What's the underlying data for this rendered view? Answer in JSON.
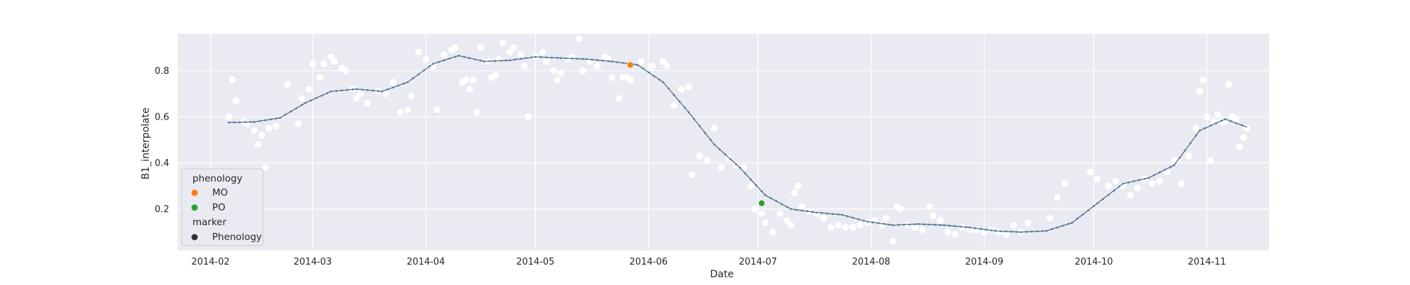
{
  "chart_data": {
    "type": "scatter",
    "style": "seaborn-darkgrid",
    "xlabel": "Date",
    "ylabel": "B1_interpolate",
    "x_ticks": [
      "2014-02",
      "2014-03",
      "2014-04",
      "2014-05",
      "2014-06",
      "2014-07",
      "2014-08",
      "2014-09",
      "2014-10",
      "2014-11"
    ],
    "y_ticks": [
      "0.2",
      "0.4",
      "0.6",
      "0.8"
    ],
    "xlim": [
      "2014-01-23",
      "2014-11-18"
    ],
    "ylim": [
      0.02,
      0.96
    ],
    "grid": true,
    "colors": {
      "background": "#eaeaf2",
      "grid": "#ffffff",
      "raw_points": "#ffffff",
      "curve": "#4c6e8c",
      "MO": "#ff7f0e",
      "PO": "#2ca02c",
      "marker_legend": "#333333"
    },
    "legend": {
      "placement": "lower-left",
      "hue_title": "phenology",
      "hue_entries": [
        "MO",
        "PO"
      ],
      "marker_title": "marker",
      "marker_entries": [
        "Phenology"
      ]
    },
    "raw_series": {
      "points": [
        [
          "2014-02-06",
          0.6
        ],
        [
          "2014-02-07",
          0.76
        ],
        [
          "2014-02-08",
          0.67
        ],
        [
          "2014-02-10",
          0.58
        ],
        [
          "2014-02-11",
          0.57
        ],
        [
          "2014-02-13",
          0.54
        ],
        [
          "2014-02-14",
          0.48
        ],
        [
          "2014-02-15",
          0.52
        ],
        [
          "2014-02-16",
          0.38
        ],
        [
          "2014-02-17",
          0.55
        ],
        [
          "2014-02-19",
          0.56
        ],
        [
          "2014-02-22",
          0.74
        ],
        [
          "2014-02-25",
          0.57
        ],
        [
          "2014-02-26",
          0.68
        ],
        [
          "2014-02-28",
          0.72
        ],
        [
          "2014-03-01",
          0.83
        ],
        [
          "2014-03-03",
          0.77
        ],
        [
          "2014-03-04",
          0.83
        ],
        [
          "2014-03-06",
          0.86
        ],
        [
          "2014-03-07",
          0.84
        ],
        [
          "2014-03-09",
          0.81
        ],
        [
          "2014-03-10",
          0.8
        ],
        [
          "2014-03-12",
          0.72
        ],
        [
          "2014-03-13",
          0.68
        ],
        [
          "2014-03-14",
          0.7
        ],
        [
          "2014-03-16",
          0.66
        ],
        [
          "2014-03-19",
          0.71
        ],
        [
          "2014-03-21",
          0.7
        ],
        [
          "2014-03-23",
          0.75
        ],
        [
          "2014-03-25",
          0.62
        ],
        [
          "2014-03-27",
          0.63
        ],
        [
          "2014-03-28",
          0.69
        ],
        [
          "2014-03-30",
          0.88
        ],
        [
          "2014-04-01",
          0.85
        ],
        [
          "2014-04-03",
          0.82
        ],
        [
          "2014-04-04",
          0.63
        ],
        [
          "2014-04-06",
          0.87
        ],
        [
          "2014-04-08",
          0.89
        ],
        [
          "2014-04-09",
          0.9
        ],
        [
          "2014-04-11",
          0.75
        ],
        [
          "2014-04-12",
          0.76
        ],
        [
          "2014-04-13",
          0.72
        ],
        [
          "2014-04-14",
          0.76
        ],
        [
          "2014-04-15",
          0.62
        ],
        [
          "2014-04-16",
          0.9
        ],
        [
          "2014-04-18",
          0.84
        ],
        [
          "2014-04-19",
          0.77
        ],
        [
          "2014-04-20",
          0.78
        ],
        [
          "2014-04-21",
          0.85
        ],
        [
          "2014-04-22",
          0.92
        ],
        [
          "2014-04-24",
          0.88
        ],
        [
          "2014-04-25",
          0.9
        ],
        [
          "2014-04-27",
          0.87
        ],
        [
          "2014-04-28",
          0.82
        ],
        [
          "2014-04-29",
          0.6
        ],
        [
          "2014-05-01",
          0.86
        ],
        [
          "2014-05-03",
          0.88
        ],
        [
          "2014-05-04",
          0.84
        ],
        [
          "2014-05-06",
          0.8
        ],
        [
          "2014-05-07",
          0.76
        ],
        [
          "2014-05-08",
          0.79
        ],
        [
          "2014-05-10",
          0.85
        ],
        [
          "2014-05-11",
          0.86
        ],
        [
          "2014-05-13",
          0.94
        ],
        [
          "2014-05-14",
          0.8
        ],
        [
          "2014-05-16",
          0.84
        ],
        [
          "2014-05-18",
          0.82
        ],
        [
          "2014-05-20",
          0.86
        ],
        [
          "2014-05-21",
          0.85
        ],
        [
          "2014-05-22",
          0.77
        ],
        [
          "2014-05-24",
          0.68
        ],
        [
          "2014-05-25",
          0.77
        ],
        [
          "2014-05-26",
          0.77
        ],
        [
          "2014-05-27",
          0.76
        ],
        [
          "2014-05-30",
          0.84
        ],
        [
          "2014-06-02",
          0.82
        ],
        [
          "2014-06-05",
          0.84
        ],
        [
          "2014-06-06",
          0.82
        ],
        [
          "2014-06-08",
          0.65
        ],
        [
          "2014-06-10",
          0.72
        ],
        [
          "2014-06-12",
          0.73
        ],
        [
          "2014-06-13",
          0.35
        ],
        [
          "2014-06-15",
          0.43
        ],
        [
          "2014-06-17",
          0.41
        ],
        [
          "2014-06-19",
          0.55
        ],
        [
          "2014-06-21",
          0.38
        ],
        [
          "2014-06-23",
          0.42
        ],
        [
          "2014-06-25",
          0.39
        ],
        [
          "2014-06-27",
          0.38
        ],
        [
          "2014-06-29",
          0.3
        ],
        [
          "2014-06-30",
          0.2
        ],
        [
          "2014-07-02",
          0.18
        ],
        [
          "2014-07-03",
          0.14
        ],
        [
          "2014-07-05",
          0.1
        ],
        [
          "2014-07-07",
          0.18
        ],
        [
          "2014-07-09",
          0.15
        ],
        [
          "2014-07-10",
          0.13
        ],
        [
          "2014-07-11",
          0.27
        ],
        [
          "2014-07-12",
          0.3
        ],
        [
          "2014-07-13",
          0.21
        ],
        [
          "2014-07-15",
          0.19
        ],
        [
          "2014-07-17",
          0.18
        ],
        [
          "2014-07-19",
          0.16
        ],
        [
          "2014-07-21",
          0.12
        ],
        [
          "2014-07-23",
          0.13
        ],
        [
          "2014-07-25",
          0.12
        ],
        [
          "2014-07-27",
          0.12
        ],
        [
          "2014-07-29",
          0.13
        ],
        [
          "2014-07-31",
          0.14
        ],
        [
          "2014-08-02",
          0.15
        ],
        [
          "2014-08-04",
          0.13
        ],
        [
          "2014-08-05",
          0.16
        ],
        [
          "2014-08-07",
          0.06
        ],
        [
          "2014-08-08",
          0.21
        ],
        [
          "2014-08-09",
          0.2
        ],
        [
          "2014-08-11",
          0.13
        ],
        [
          "2014-08-13",
          0.12
        ],
        [
          "2014-08-15",
          0.11
        ],
        [
          "2014-08-17",
          0.21
        ],
        [
          "2014-08-18",
          0.17
        ],
        [
          "2014-08-20",
          0.15
        ],
        [
          "2014-08-22",
          0.1
        ],
        [
          "2014-08-24",
          0.09
        ],
        [
          "2014-08-26",
          0.12
        ],
        [
          "2014-08-28",
          0.11
        ],
        [
          "2014-08-30",
          0.11
        ],
        [
          "2014-09-01",
          0.1
        ],
        [
          "2014-09-03",
          0.11
        ],
        [
          "2014-09-05",
          0.1
        ],
        [
          "2014-09-07",
          0.09
        ],
        [
          "2014-09-09",
          0.13
        ],
        [
          "2014-09-11",
          0.1
        ],
        [
          "2014-09-13",
          0.14
        ],
        [
          "2014-09-19",
          0.16
        ],
        [
          "2014-09-21",
          0.25
        ],
        [
          "2014-09-23",
          0.31
        ],
        [
          "2014-09-30",
          0.36
        ],
        [
          "2014-10-02",
          0.33
        ],
        [
          "2014-10-05",
          0.3
        ],
        [
          "2014-10-07",
          0.32
        ],
        [
          "2014-10-09",
          0.3
        ],
        [
          "2014-10-11",
          0.26
        ],
        [
          "2014-10-13",
          0.29
        ],
        [
          "2014-10-15",
          0.33
        ],
        [
          "2014-10-17",
          0.31
        ],
        [
          "2014-10-19",
          0.32
        ],
        [
          "2014-10-21",
          0.36
        ],
        [
          "2014-10-23",
          0.41
        ],
        [
          "2014-10-24",
          0.41
        ],
        [
          "2014-10-25",
          0.31
        ],
        [
          "2014-10-27",
          0.43
        ],
        [
          "2014-10-29",
          0.55
        ],
        [
          "2014-10-30",
          0.71
        ],
        [
          "2014-10-31",
          0.76
        ],
        [
          "2014-11-01",
          0.6
        ],
        [
          "2014-11-02",
          0.41
        ],
        [
          "2014-11-03",
          0.58
        ],
        [
          "2014-11-04",
          0.61
        ],
        [
          "2014-11-05",
          0.58
        ],
        [
          "2014-11-06",
          0.58
        ],
        [
          "2014-11-07",
          0.74
        ],
        [
          "2014-11-08",
          0.6
        ],
        [
          "2014-11-09",
          0.59
        ],
        [
          "2014-11-10",
          0.47
        ],
        [
          "2014-11-11",
          0.51
        ],
        [
          "2014-11-12",
          0.55
        ]
      ]
    },
    "smoothed_series": {
      "points": [
        [
          "2014-02-06",
          0.575
        ],
        [
          "2014-02-13",
          0.578
        ],
        [
          "2014-02-20",
          0.595
        ],
        [
          "2014-02-27",
          0.66
        ],
        [
          "2014-03-06",
          0.71
        ],
        [
          "2014-03-13",
          0.72
        ],
        [
          "2014-03-20",
          0.71
        ],
        [
          "2014-03-27",
          0.75
        ],
        [
          "2014-04-03",
          0.83
        ],
        [
          "2014-04-10",
          0.865
        ],
        [
          "2014-04-17",
          0.84
        ],
        [
          "2014-04-24",
          0.845
        ],
        [
          "2014-05-01",
          0.86
        ],
        [
          "2014-05-08",
          0.855
        ],
        [
          "2014-05-15",
          0.85
        ],
        [
          "2014-05-22",
          0.84
        ],
        [
          "2014-05-29",
          0.825
        ],
        [
          "2014-06-05",
          0.75
        ],
        [
          "2014-06-12",
          0.62
        ],
        [
          "2014-06-19",
          0.48
        ],
        [
          "2014-06-26",
          0.38
        ],
        [
          "2014-07-03",
          0.26
        ],
        [
          "2014-07-10",
          0.2
        ],
        [
          "2014-07-17",
          0.185
        ],
        [
          "2014-07-24",
          0.175
        ],
        [
          "2014-07-31",
          0.145
        ],
        [
          "2014-08-07",
          0.13
        ],
        [
          "2014-08-14",
          0.135
        ],
        [
          "2014-08-21",
          0.13
        ],
        [
          "2014-08-28",
          0.12
        ],
        [
          "2014-09-04",
          0.105
        ],
        [
          "2014-09-11",
          0.1
        ],
        [
          "2014-09-18",
          0.105
        ],
        [
          "2014-09-25",
          0.14
        ],
        [
          "2014-10-02",
          0.225
        ],
        [
          "2014-10-09",
          0.31
        ],
        [
          "2014-10-16",
          0.335
        ],
        [
          "2014-10-23",
          0.39
        ],
        [
          "2014-10-30",
          0.54
        ],
        [
          "2014-11-06",
          0.59
        ],
        [
          "2014-11-12",
          0.555
        ]
      ]
    },
    "phenology_points": [
      {
        "label": "MO",
        "date": "2014-05-27",
        "value": 0.825
      },
      {
        "label": "PO",
        "date": "2014-07-02",
        "value": 0.225
      }
    ]
  }
}
